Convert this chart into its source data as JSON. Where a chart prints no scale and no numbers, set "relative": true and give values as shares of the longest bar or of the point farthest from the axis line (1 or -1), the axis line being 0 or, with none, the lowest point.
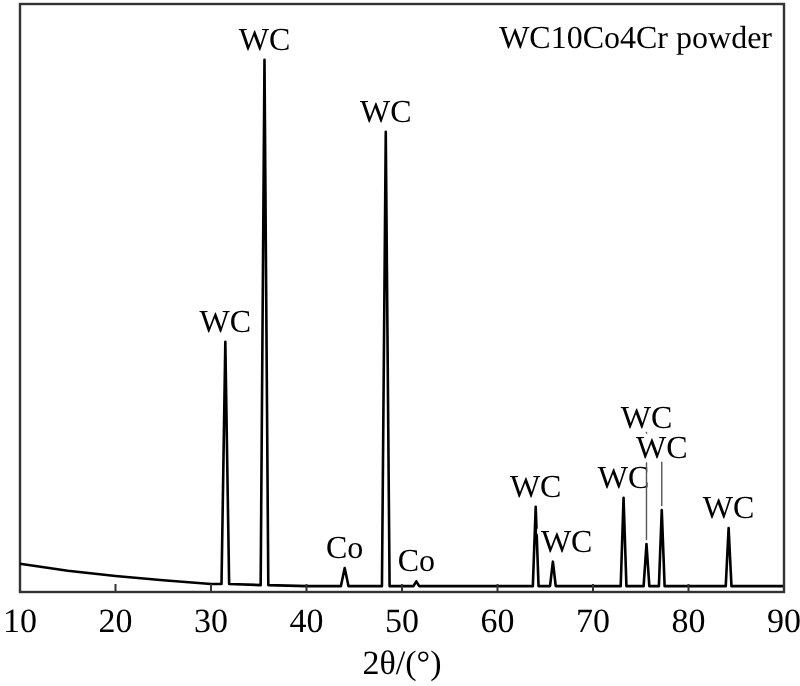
{
  "chart_data": {
    "type": "line",
    "relative": true,
    "xlabel": "2θ/(°)",
    "xlim": [
      10,
      90
    ],
    "xticks": [
      10,
      20,
      30,
      40,
      50,
      60,
      70,
      80,
      90
    ],
    "x": [
      10,
      15,
      20,
      25,
      30,
      31.1,
      31.5,
      31.9,
      35.2,
      35.6,
      36.0,
      40,
      43.6,
      44.0,
      44.4,
      47.9,
      48.3,
      48.7,
      51.2,
      51.5,
      51.8,
      63.7,
      64.0,
      64.3,
      65.5,
      65.8,
      66.1,
      72.9,
      73.2,
      73.5,
      75.3,
      75.6,
      75.9,
      76.9,
      77.2,
      77.5,
      83.9,
      84.2,
      84.5,
      90
    ],
    "series": [
      {
        "color": "#000000",
        "values": [
          0.053,
          0.04,
          0.03,
          0.022,
          0.015,
          0.015,
          0.47,
          0.015,
          0.013,
          1,
          0.013,
          0.011,
          0.011,
          0.045,
          0.011,
          0.011,
          0.865,
          0.011,
          0.011,
          0.02,
          0.011,
          0.011,
          0.16,
          0.011,
          0.011,
          0.057,
          0.011,
          0.011,
          0.177,
          0.011,
          0.011,
          0.09,
          0.011,
          0.011,
          0.154,
          0.011,
          0.011,
          0.12,
          0.011,
          0.011
        ]
      }
    ],
    "annotations": [
      "WC10Co4Cr powder",
      {
        "text": "WC",
        "x": 31.5,
        "y": 0.47
      },
      {
        "text": "WC",
        "x": 35.6,
        "y": 1
      },
      {
        "text": "Co",
        "x": 44.0,
        "y": 0.045
      },
      {
        "text": "WC",
        "x": 48.3,
        "y": 0.865
      },
      {
        "text": "Co",
        "x": 51.5,
        "y": 0.02
      },
      {
        "text": "WC",
        "x": 64.0,
        "y": 0.16
      },
      {
        "text": "WC",
        "x": 65.8,
        "y": 0.057
      },
      {
        "text": "WC",
        "x": 73.2,
        "y": 0.177
      },
      {
        "text": "WC",
        "x": 75.6,
        "y": 0.09
      },
      {
        "text": "WC",
        "x": 77.2,
        "y": 0.154
      },
      {
        "text": "WC",
        "x": 84.2,
        "y": 0.12
      }
    ],
    "legend": false,
    "grid": false
  }
}
